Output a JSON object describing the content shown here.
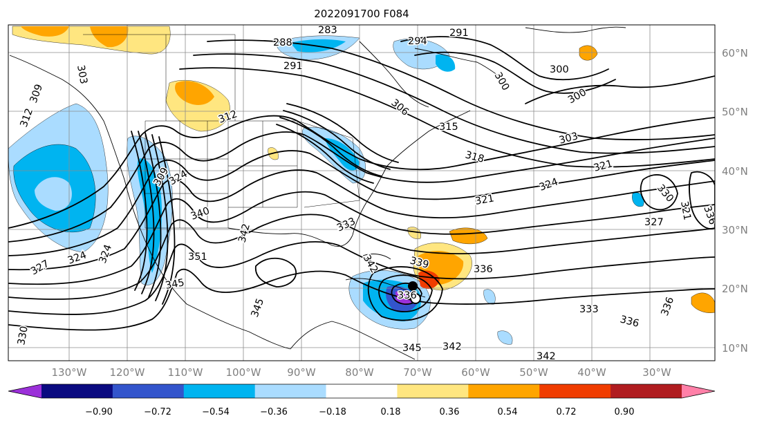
{
  "title": "2022091700 F084",
  "map": {
    "lon_labels": [
      "130°W",
      "120°W",
      "110°W",
      "100°W",
      "90°W",
      "80°W",
      "70°W",
      "60°W",
      "50°W",
      "40°W",
      "30°W"
    ],
    "lat_labels": [
      "60°N",
      "50°N",
      "40°N",
      "30°N",
      "20°N",
      "10°N"
    ],
    "contour_labels": [
      "283",
      "291",
      "294",
      "288",
      "291",
      "300",
      "300",
      "300",
      "303",
      "303",
      "309",
      "312",
      "306",
      "312",
      "315",
      "318",
      "309",
      "321",
      "324",
      "324",
      "321",
      "330",
      "321",
      "327",
      "333",
      "336",
      "324",
      "340",
      "342",
      "327",
      "324",
      "351",
      "345",
      "345",
      "339",
      "336",
      "333",
      "336",
      "342",
      "330",
      "345",
      "342",
      "342",
      "336",
      "336"
    ]
  },
  "colorbar": {
    "tick_labels": [
      "−0.90",
      "−0.72",
      "−0.54",
      "−0.36",
      "−0.18",
      "0.18",
      "0.36",
      "0.54",
      "0.72",
      "0.90"
    ],
    "colors": [
      "#9b30d9",
      "#0a0a80",
      "#3355cc",
      "#00b4f0",
      "#aadcff",
      "#ffffff",
      "#ffe680",
      "#ffa500",
      "#f03c00",
      "#b01c20",
      "#ff80a8"
    ]
  }
}
